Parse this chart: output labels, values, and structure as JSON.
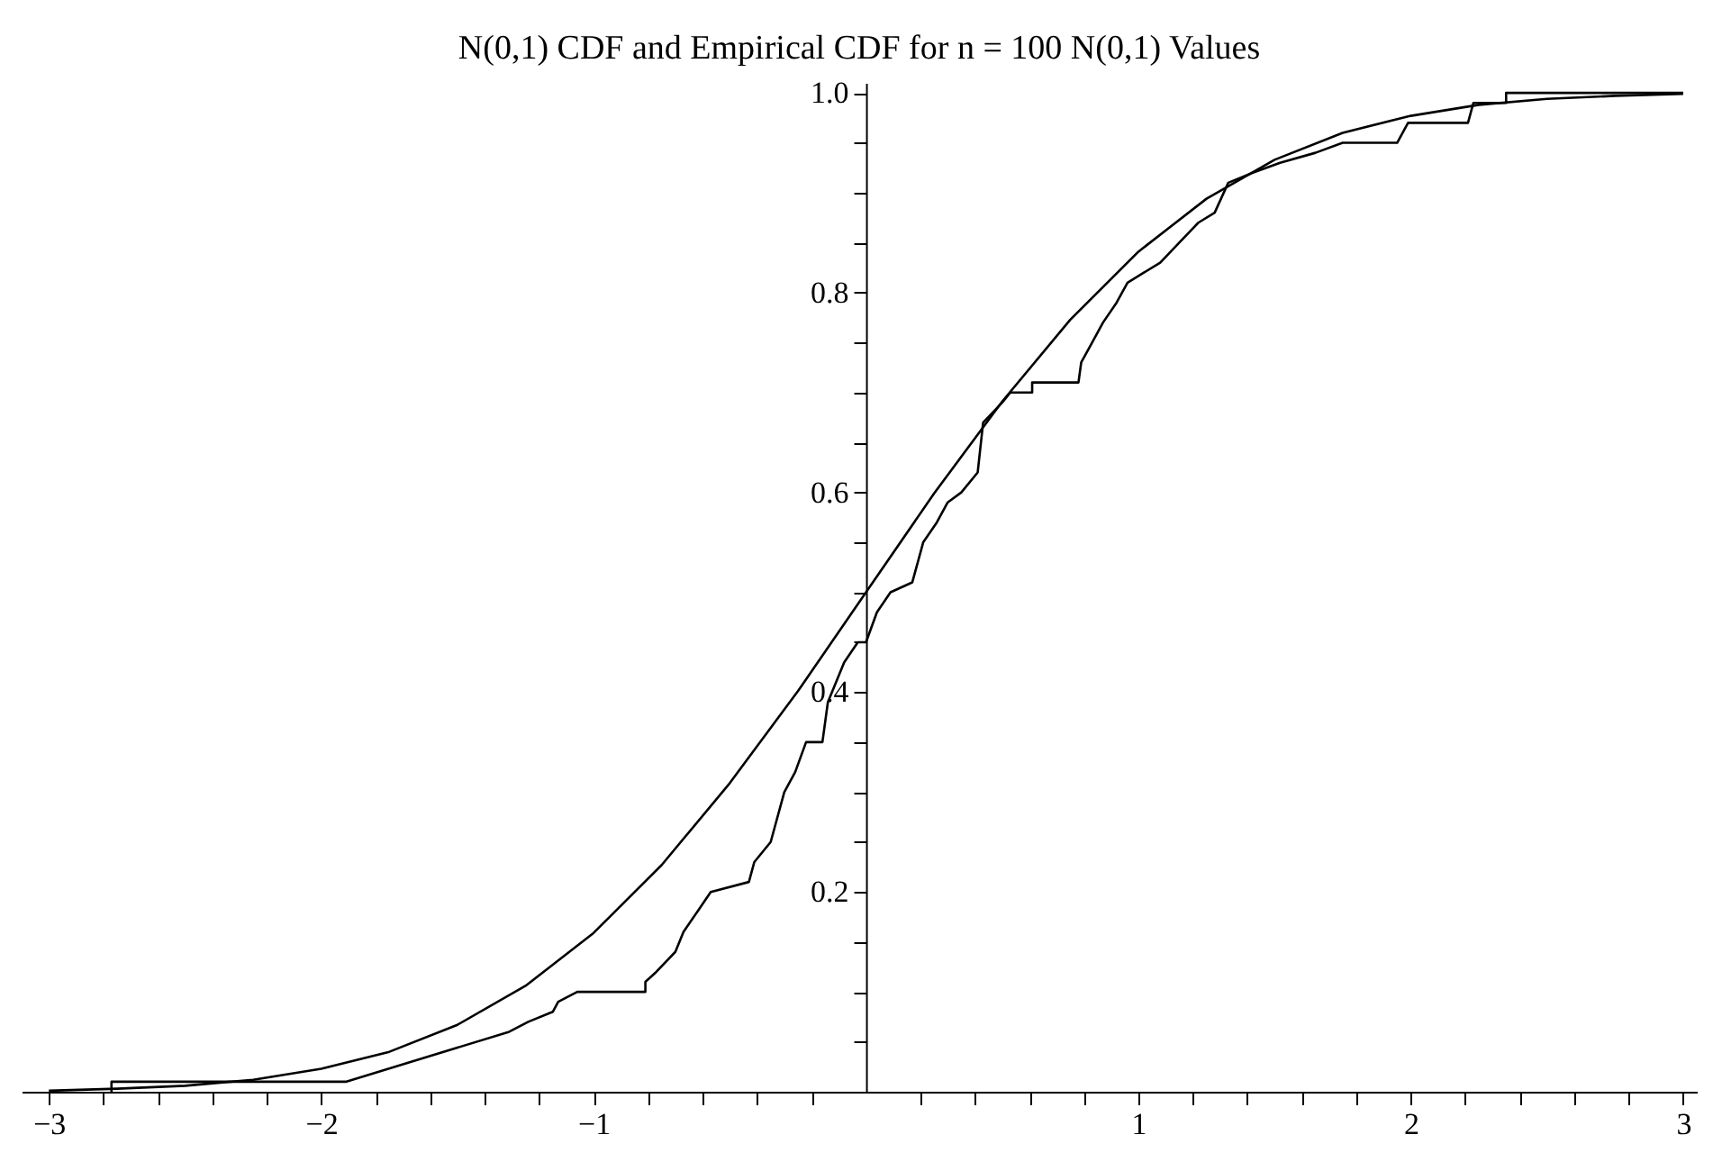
{
  "chart_data": {
    "type": "line",
    "title": "N(0,1) CDF and Empirical CDF for n = 100 N(0,1) Values",
    "xlim": [
      -3.1,
      3.05
    ],
    "ylim": [
      0,
      1.01
    ],
    "xticks": [
      {
        "value": -3,
        "label": "−3"
      },
      {
        "value": -2.8,
        "label": null
      },
      {
        "value": -2.6,
        "label": null
      },
      {
        "value": -2.4,
        "label": null
      },
      {
        "value": -2.2,
        "label": null
      },
      {
        "value": -2,
        "label": "−2"
      },
      {
        "value": -1.8,
        "label": null
      },
      {
        "value": -1.6,
        "label": null
      },
      {
        "value": -1.4,
        "label": null
      },
      {
        "value": -1.2,
        "label": null
      },
      {
        "value": -1,
        "label": "−1"
      },
      {
        "value": -0.8,
        "label": null
      },
      {
        "value": -0.6,
        "label": null
      },
      {
        "value": -0.4,
        "label": null
      },
      {
        "value": -0.2,
        "label": null
      },
      {
        "value": 0.2,
        "label": null
      },
      {
        "value": 0.4,
        "label": null
      },
      {
        "value": 0.6,
        "label": null
      },
      {
        "value": 0.8,
        "label": null
      },
      1,
      {
        "value": 1.2,
        "label": null
      },
      {
        "value": 1.4,
        "label": null
      },
      {
        "value": 1.6,
        "label": null
      },
      {
        "value": 1.8,
        "label": null
      },
      2,
      {
        "value": 2.2,
        "label": null
      },
      {
        "value": 2.4,
        "label": null
      },
      {
        "value": 2.6,
        "label": null
      },
      {
        "value": 2.8,
        "label": null
      },
      3
    ],
    "yticks": [
      {
        "value": 0.05,
        "label": null
      },
      {
        "value": 0.1,
        "label": null
      },
      {
        "value": 0.15,
        "label": null
      },
      0.2,
      {
        "value": 0.25,
        "label": null
      },
      {
        "value": 0.3,
        "label": null
      },
      {
        "value": 0.35,
        "label": null
      },
      0.4,
      {
        "value": 0.45,
        "label": null
      },
      {
        "value": 0.5,
        "label": null
      },
      {
        "value": 0.55,
        "label": null
      },
      0.6,
      {
        "value": 0.65,
        "label": null
      },
      {
        "value": 0.7,
        "label": null
      },
      {
        "value": 0.75,
        "label": null
      },
      0.8,
      {
        "value": 0.85,
        "label": null
      },
      {
        "value": 0.9,
        "label": null
      },
      {
        "value": 0.95,
        "label": null
      },
      {
        "value": 1.0,
        "label": "1.0"
      }
    ],
    "grid": false,
    "legend": false,
    "marker": "none",
    "line_style": "solid",
    "series": [
      {
        "color": "#000000",
        "x": [
          -3,
          -2.75,
          -2.5,
          -2.25,
          -2,
          -1.75,
          -1.5,
          -1.25,
          -1,
          -0.75,
          -0.5,
          -0.25,
          0,
          0.25,
          0.5,
          0.75,
          1,
          1.25,
          1.5,
          1.75,
          2,
          2.25,
          2.5,
          2.75,
          3
        ],
        "values": [
          0.001,
          0.003,
          0.006,
          0.012,
          0.023,
          0.04,
          0.067,
          0.106,
          0.159,
          0.227,
          0.309,
          0.401,
          0.5,
          0.599,
          0.691,
          0.773,
          0.841,
          0.894,
          0.933,
          0.96,
          0.977,
          0.988,
          0.994,
          0.997,
          0.999
        ]
      },
      {
        "color": "#000000",
        "x": [
          -2.77,
          -2.77,
          -1.91,
          -1.31,
          -1.24,
          -1.15,
          -1.13,
          -1.06,
          -0.81,
          -0.81,
          -0.77,
          -0.7,
          -0.67,
          -0.62,
          -0.57,
          -0.43,
          -0.41,
          -0.35,
          -0.3,
          -0.26,
          -0.22,
          -0.16,
          -0.14,
          -0.08,
          -0.03,
          0,
          0.04,
          0.09,
          0.17,
          0.21,
          0.26,
          0.3,
          0.35,
          0.41,
          0.43,
          0.5,
          0.53,
          0.61,
          0.61,
          0.78,
          0.79,
          0.83,
          0.87,
          0.92,
          0.96,
          1.02,
          1.08,
          1.15,
          1.22,
          1.28,
          1.33,
          1.42,
          1.52,
          1.65,
          1.75,
          1.95,
          1.99,
          2.21,
          2.23,
          2.35,
          2.35,
          3
        ],
        "values": [
          0,
          0.01,
          0.01,
          0.06,
          0.07,
          0.08,
          0.09,
          0.1,
          0.1,
          0.11,
          0.12,
          0.14,
          0.16,
          0.18,
          0.2,
          0.21,
          0.23,
          0.25,
          0.3,
          0.32,
          0.35,
          0.35,
          0.39,
          0.43,
          0.45,
          0.45,
          0.48,
          0.5,
          0.51,
          0.55,
          0.57,
          0.59,
          0.6,
          0.62,
          0.67,
          0.69,
          0.7,
          0.7,
          0.71,
          0.71,
          0.73,
          0.75,
          0.77,
          0.79,
          0.81,
          0.82,
          0.83,
          0.85,
          0.87,
          0.88,
          0.91,
          0.92,
          0.93,
          0.94,
          0.95,
          0.95,
          0.97,
          0.97,
          0.99,
          0.99,
          1.0,
          1.0
        ]
      }
    ]
  }
}
